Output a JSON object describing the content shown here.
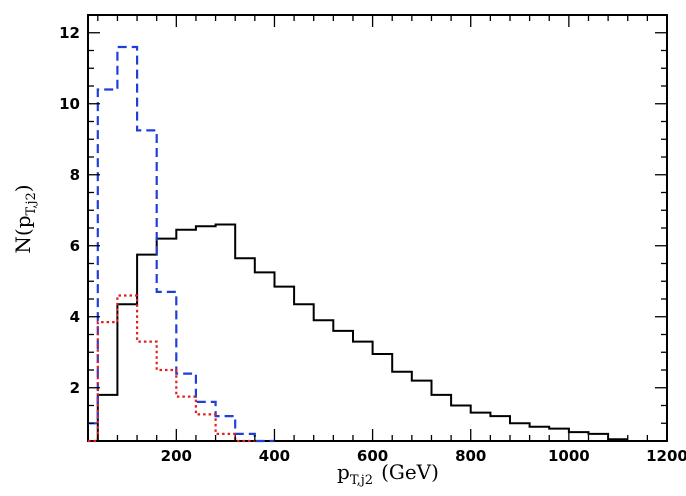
{
  "chart_data": {
    "type": "histogram",
    "xlabel": "p",
    "xlabel_sub": "T,j2",
    "xlabel_unit": "(GeV)",
    "ylabel": "N(p",
    "ylabel_sub": "T,j2",
    "ylabel_close": ")",
    "xlim": [
      20,
      1200
    ],
    "ylim": [
      0.5,
      12.5
    ],
    "x_ticks": [
      200,
      400,
      600,
      800,
      1000,
      1200
    ],
    "x_tick_labels": [
      "200",
      "400",
      "600",
      "800",
      "1000",
      "1200"
    ],
    "y_ticks": [
      2,
      4,
      6,
      8,
      10,
      12
    ],
    "y_tick_labels": [
      "2",
      "4",
      "6",
      "8",
      "10",
      "12"
    ],
    "grid": false,
    "series": [
      {
        "color": "#000000",
        "style": "solid",
        "edges": [
          20,
          40,
          80,
          120,
          160,
          200,
          240,
          280,
          320,
          360,
          400,
          440,
          480,
          520,
          560,
          600,
          640,
          680,
          720,
          760,
          800,
          840,
          880,
          920,
          960,
          1000,
          1040,
          1080,
          1120
        ],
        "values": [
          0,
          1.8,
          4.35,
          5.75,
          6.2,
          6.45,
          6.55,
          6.6,
          5.65,
          5.25,
          4.85,
          4.35,
          3.9,
          3.6,
          3.3,
          2.95,
          2.45,
          2.2,
          1.8,
          1.5,
          1.3,
          1.2,
          1.0,
          0.9,
          0.85,
          0.75,
          0.7,
          0.55
        ]
      },
      {
        "color": "#1f3fdc",
        "style": "dashed",
        "edges": [
          20,
          40,
          80,
          120,
          160,
          200,
          240,
          280,
          320,
          360,
          400
        ],
        "values": [
          1.0,
          10.4,
          11.6,
          9.25,
          4.7,
          2.4,
          1.6,
          1.2,
          0.7,
          0.5
        ]
      },
      {
        "color": "#e02020",
        "style": "dotted",
        "edges": [
          20,
          40,
          80,
          120,
          160,
          200,
          240,
          280,
          320,
          360
        ],
        "values": [
          0.5,
          3.85,
          4.6,
          3.3,
          2.5,
          1.75,
          1.25,
          0.7,
          0.45
        ]
      }
    ]
  }
}
